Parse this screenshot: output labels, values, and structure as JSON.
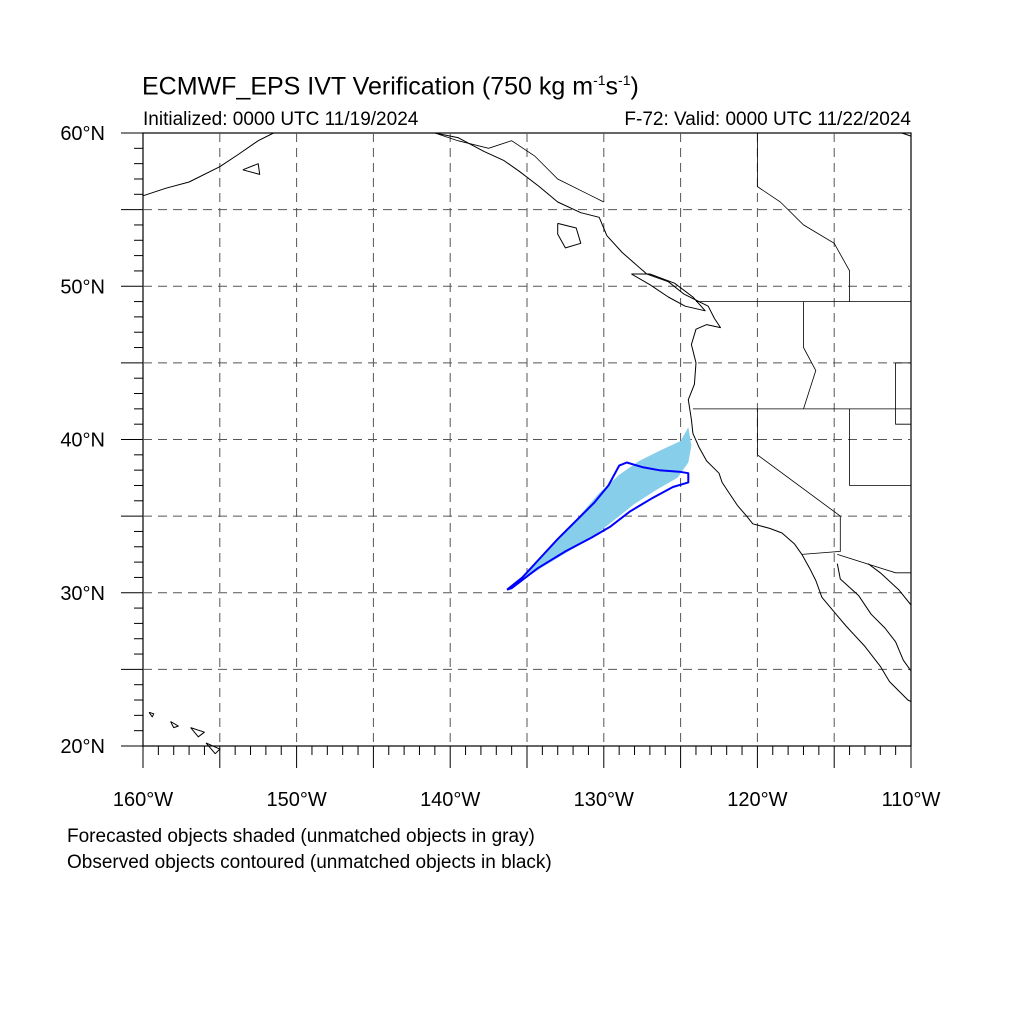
{
  "title": {
    "main": "ECMWF_EPS IVT Verification (750 kg m",
    "exp1": "-1",
    "mid": "s",
    "exp2": "-1",
    "end": ")"
  },
  "subtitle_left": "Initialized: 0000 UTC 11/19/2024",
  "subtitle_right": "F-72: Valid: 0000 UTC 11/22/2024",
  "lat_labels": [
    "60°N",
    "50°N",
    "40°N",
    "30°N",
    "20°N"
  ],
  "lon_labels": [
    "160°W",
    "150°W",
    "140°W",
    "130°W",
    "120°W",
    "110°W"
  ],
  "notes": {
    "line1": "Forecasted objects shaded (unmatched objects in gray)",
    "line2": "Observed objects contoured (unmatched objects in black)"
  },
  "map_extent": {
    "lon_min": -160,
    "lon_max": -110,
    "lat_min": 20,
    "lat_max": 60
  },
  "colors": {
    "forecast_fill": "#87ceeb",
    "observed_contour": "#0000ff",
    "coastline": "#000000",
    "grid": "#555555"
  },
  "forecast_object": [
    [
      -136.2,
      30.2
    ],
    [
      -135.2,
      31.2
    ],
    [
      -134.0,
      32.5
    ],
    [
      -132.8,
      33.8
    ],
    [
      -131.6,
      35.0
    ],
    [
      -130.3,
      36.5
    ],
    [
      -129.0,
      37.7
    ],
    [
      -127.7,
      38.6
    ],
    [
      -126.3,
      39.3
    ],
    [
      -125.0,
      39.9
    ],
    [
      -124.5,
      40.8
    ],
    [
      -124.3,
      39.6
    ],
    [
      -124.5,
      38.5
    ],
    [
      -125.2,
      37.5
    ],
    [
      -126.6,
      36.7
    ],
    [
      -128.0,
      35.8
    ],
    [
      -129.5,
      34.6
    ],
    [
      -130.8,
      33.6
    ],
    [
      -132.3,
      32.7
    ],
    [
      -133.8,
      31.8
    ],
    [
      -135.2,
      30.9
    ],
    [
      -136.2,
      30.2
    ]
  ],
  "observed_object": [
    [
      -136.3,
      30.2
    ],
    [
      -135.3,
      31.0
    ],
    [
      -134.2,
      32.2
    ],
    [
      -133.0,
      33.5
    ],
    [
      -131.8,
      34.7
    ],
    [
      -130.6,
      35.9
    ],
    [
      -129.7,
      37.0
    ],
    [
      -129.0,
      38.3
    ],
    [
      -128.5,
      38.5
    ],
    [
      -127.5,
      38.2
    ],
    [
      -126.4,
      38.0
    ],
    [
      -125.1,
      37.9
    ],
    [
      -124.5,
      37.8
    ],
    [
      -124.5,
      37.2
    ],
    [
      -125.5,
      36.9
    ],
    [
      -126.8,
      36.2
    ],
    [
      -128.3,
      35.3
    ],
    [
      -129.6,
      34.3
    ],
    [
      -130.8,
      33.6
    ],
    [
      -132.5,
      32.7
    ],
    [
      -134.3,
      31.6
    ],
    [
      -136.0,
      30.3
    ],
    [
      -136.3,
      30.2
    ]
  ],
  "coastlines": [
    [
      [
        -160,
        55.9
      ],
      [
        -158.5,
        56.4
      ],
      [
        -157.0,
        56.8
      ],
      [
        -155.0,
        57.8
      ],
      [
        -153.8,
        58.6
      ],
      [
        -152.5,
        59.5
      ],
      [
        -151.5,
        60
      ]
    ],
    [
      [
        -153.5,
        57.6
      ],
      [
        -152.5,
        58.0
      ],
      [
        -152.4,
        57.3
      ],
      [
        -153.5,
        57.6
      ]
    ],
    [
      [
        -141,
        60
      ],
      [
        -139.5,
        59.7
      ],
      [
        -137.8,
        58.8
      ],
      [
        -136.5,
        58.2
      ],
      [
        -135.5,
        57.5
      ],
      [
        -134.2,
        56.5
      ],
      [
        -133.0,
        55.5
      ],
      [
        -131.5,
        54.8
      ],
      [
        -130.3,
        54.5
      ],
      [
        -129.8,
        53.3
      ],
      [
        -128.8,
        52.2
      ],
      [
        -128.0,
        51.5
      ],
      [
        -127.2,
        50.8
      ],
      [
        -125.8,
        50.3
      ],
      [
        -124.8,
        49.5
      ],
      [
        -123.2,
        48.7
      ],
      [
        -122.8,
        47.9
      ],
      [
        -122.4,
        47.3
      ],
      [
        -123.3,
        47.5
      ],
      [
        -124.0,
        47.2
      ],
      [
        -124.3,
        46.2
      ],
      [
        -124.0,
        45.0
      ],
      [
        -124.1,
        43.6
      ],
      [
        -124.5,
        42.6
      ],
      [
        -124.3,
        41.3
      ],
      [
        -124.2,
        40.4
      ],
      [
        -123.8,
        39.5
      ],
      [
        -123.3,
        38.6
      ],
      [
        -122.5,
        37.8
      ],
      [
        -122.3,
        37.2
      ],
      [
        -121.9,
        36.6
      ],
      [
        -121.3,
        35.7
      ],
      [
        -120.7,
        35.0
      ],
      [
        -120.3,
        34.5
      ],
      [
        -119.2,
        34.2
      ],
      [
        -118.4,
        33.9
      ],
      [
        -117.6,
        33.2
      ],
      [
        -117.1,
        32.5
      ],
      [
        -116.6,
        31.6
      ],
      [
        -116.2,
        30.8
      ],
      [
        -115.8,
        29.7
      ],
      [
        -114.8,
        28.5
      ],
      [
        -114.2,
        27.8
      ],
      [
        -113.0,
        26.5
      ],
      [
        -112.0,
        25.2
      ],
      [
        -111.4,
        24.2
      ],
      [
        -110.2,
        23.0
      ],
      [
        -110,
        22.9
      ]
    ],
    [
      [
        -128.2,
        50.8
      ],
      [
        -127.0,
        50.1
      ],
      [
        -125.8,
        49.3
      ],
      [
        -124.7,
        48.7
      ],
      [
        -123.4,
        48.4
      ],
      [
        -124.2,
        49.3
      ],
      [
        -125.4,
        50.2
      ],
      [
        -127.0,
        50.8
      ],
      [
        -128.2,
        50.8
      ]
    ],
    [
      [
        -133.0,
        54.1
      ],
      [
        -131.8,
        53.8
      ],
      [
        -131.5,
        52.8
      ],
      [
        -132.5,
        52.5
      ],
      [
        -133.0,
        53.4
      ],
      [
        -133.0,
        54.1
      ]
    ],
    [
      [
        -114.8,
        31.9
      ],
      [
        -114.6,
        30.9
      ],
      [
        -113.4,
        29.8
      ],
      [
        -112.6,
        28.6
      ],
      [
        -111.7,
        27.7
      ],
      [
        -111.0,
        26.8
      ],
      [
        -110.5,
        25.6
      ],
      [
        -110,
        24.9
      ]
    ],
    [
      [
        -112.8,
        31.9
      ],
      [
        -112.0,
        31.3
      ],
      [
        -110.8,
        30.2
      ],
      [
        -110,
        29.2
      ]
    ],
    [
      [
        -110.6,
        60
      ],
      [
        -110,
        59.8
      ]
    ],
    [
      [
        -159.6,
        22.2
      ],
      [
        -159.3,
        22.1
      ],
      [
        -159.4,
        21.9
      ],
      [
        -159.6,
        22.2
      ]
    ],
    [
      [
        -158.2,
        21.6
      ],
      [
        -157.7,
        21.3
      ],
      [
        -158.0,
        21.2
      ],
      [
        -158.2,
        21.6
      ]
    ],
    [
      [
        -156.9,
        21.2
      ],
      [
        -156.0,
        20.9
      ],
      [
        -156.4,
        20.6
      ],
      [
        -156.9,
        21.2
      ]
    ],
    [
      [
        -155.9,
        20.2
      ],
      [
        -155.0,
        19.8
      ],
      [
        -155.3,
        19.5
      ],
      [
        -155.9,
        20.2
      ]
    ]
  ],
  "borders": [
    [
      [
        -124.0,
        49.0
      ],
      [
        -110,
        49.0
      ]
    ],
    [
      [
        -124.2,
        42.0
      ],
      [
        -110,
        42.0
      ]
    ],
    [
      [
        -120.0,
        42.0
      ],
      [
        -120.0,
        39.0
      ],
      [
        -114.6,
        35.0
      ]
    ],
    [
      [
        -117.0,
        49.0
      ],
      [
        -117.0,
        46.0
      ],
      [
        -116.2,
        44.5
      ],
      [
        -117.0,
        42.0
      ]
    ],
    [
      [
        -114.6,
        35.0
      ],
      [
        -114.6,
        32.7
      ],
      [
        -117.1,
        32.5
      ]
    ],
    [
      [
        -114.8,
        32.5
      ],
      [
        -111.0,
        31.3
      ],
      [
        -110,
        31.3
      ]
    ],
    [
      [
        -114.0,
        42.0
      ],
      [
        -114.0,
        37.0
      ],
      [
        -110,
        37.0
      ]
    ],
    [
      [
        -111.0,
        45.0
      ],
      [
        -110,
        45.0
      ]
    ],
    [
      [
        -111.0,
        45.0
      ],
      [
        -111.0,
        41.0
      ],
      [
        -110,
        41.0
      ]
    ],
    [
      [
        -120.0,
        60
      ],
      [
        -120.0,
        56.5
      ],
      [
        -118.5,
        55.5
      ],
      [
        -117.0,
        54.0
      ],
      [
        -115.0,
        52.8
      ],
      [
        -114.0,
        51.0
      ],
      [
        -114.0,
        49.0
      ]
    ],
    [
      [
        -141.0,
        60
      ],
      [
        -139.5,
        59.5
      ],
      [
        -137.5,
        59.0
      ],
      [
        -136.0,
        59.5
      ],
      [
        -134.5,
        58.5
      ],
      [
        -133.0,
        57.0
      ],
      [
        -131.0,
        56.0
      ],
      [
        -130.0,
        55.5
      ]
    ]
  ]
}
